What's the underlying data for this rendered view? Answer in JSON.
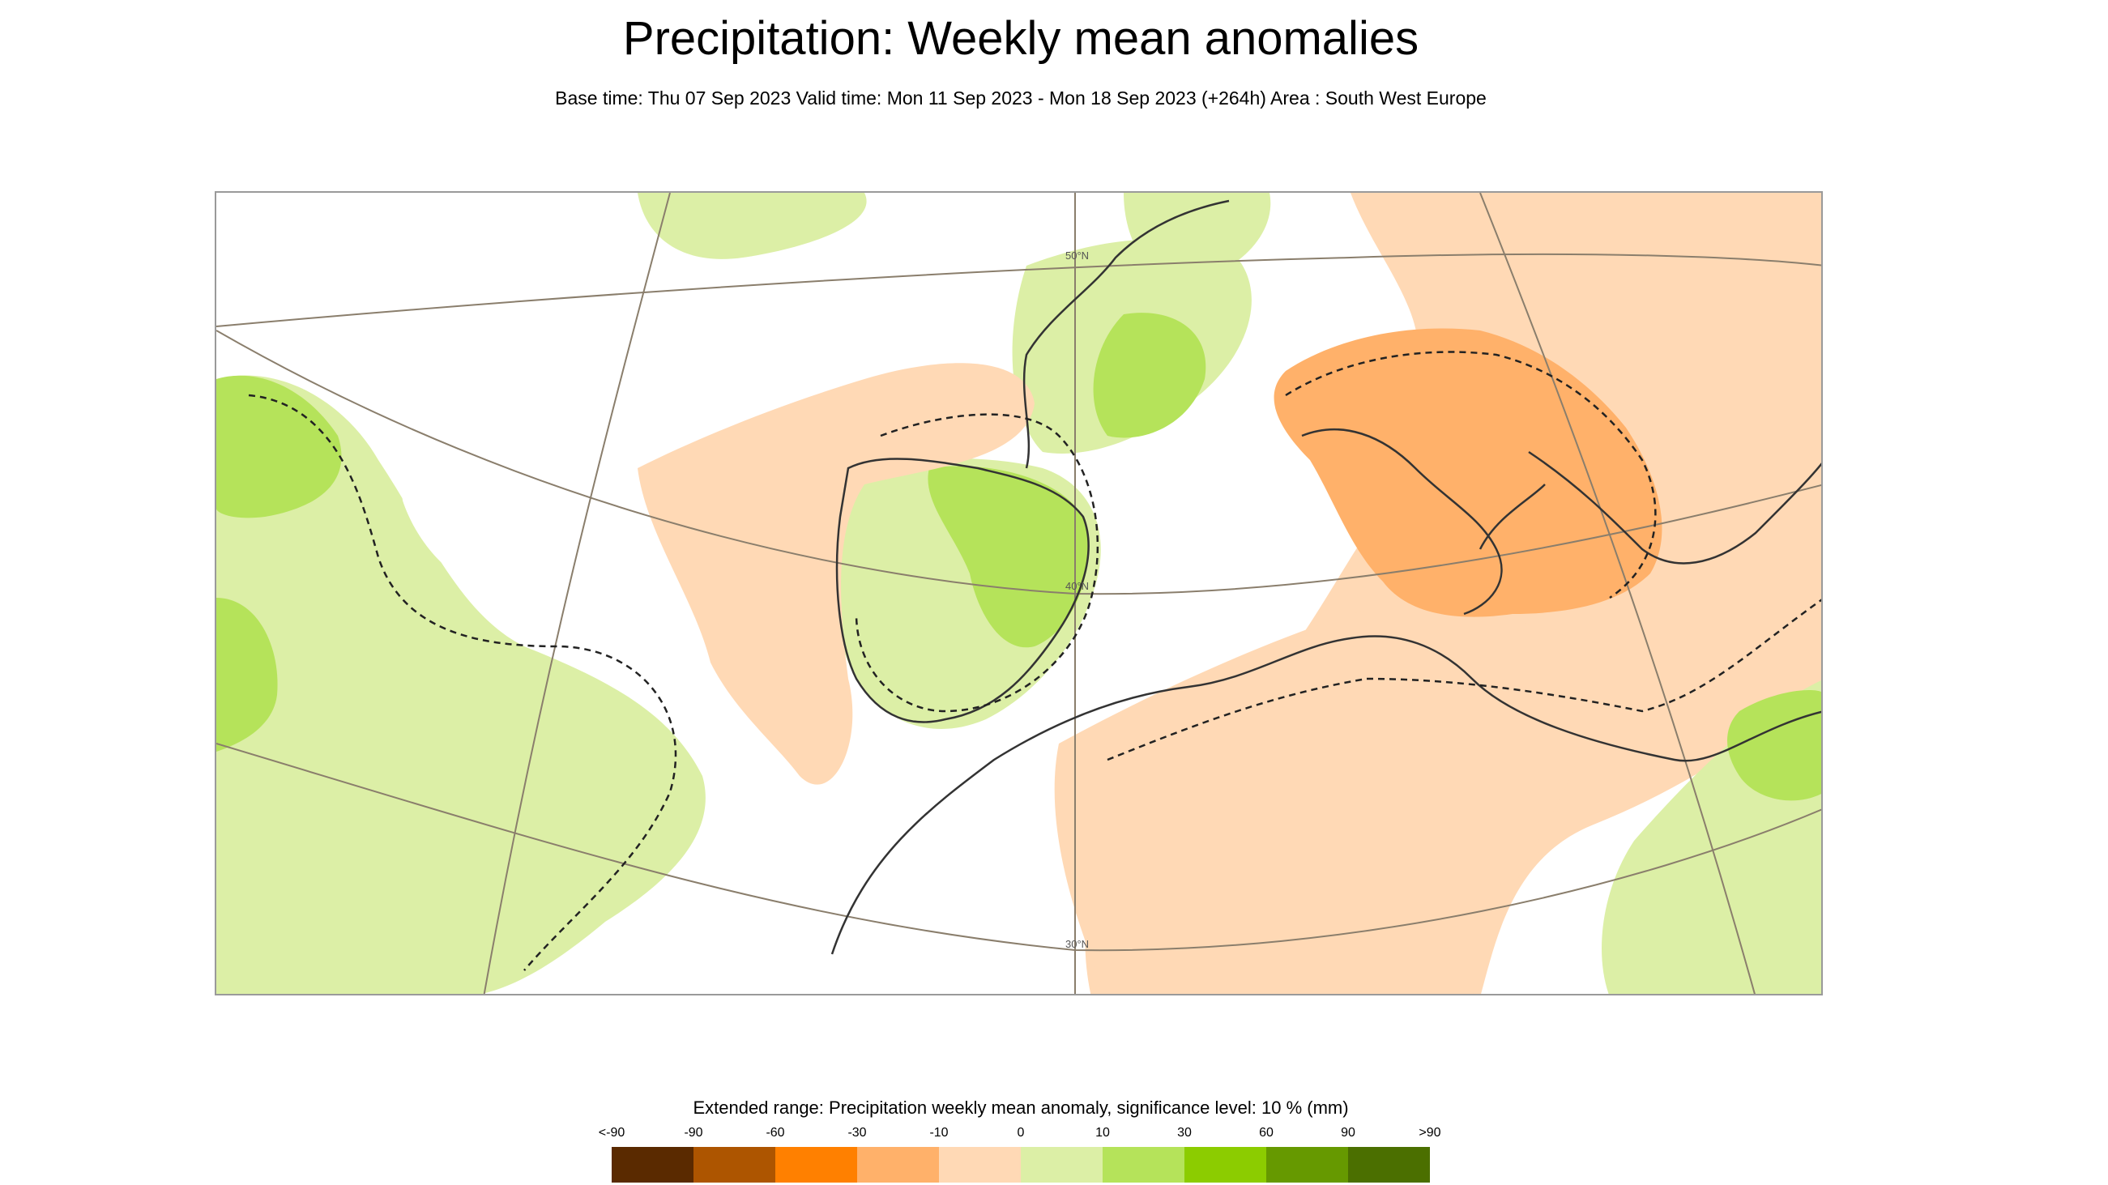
{
  "title": "Precipitation: Weekly mean anomalies",
  "subtitle": "Base time: Thu 07 Sep 2023 Valid time: Mon 11 Sep 2023 - Mon 18 Sep 2023 (+264h) Area : South West Europe",
  "map": {
    "region": "South West Europe",
    "latitude_labels": [
      "50°N",
      "40°N",
      "30°N"
    ],
    "icons": {
      "frame": "map-frame"
    }
  },
  "legend": {
    "title": "Extended range: Precipitation weekly mean anomaly, significance level: 10 % (mm)",
    "ticks": [
      "<-90",
      "-90",
      "-60",
      "-30",
      "-10",
      "0",
      "10",
      "30",
      "60",
      "90",
      ">90"
    ],
    "colors": [
      "#5a2a00",
      "#ad5500",
      "#ff8000",
      "#ffb16a",
      "#ffd9b5",
      "#dcefa6",
      "#b5e35a",
      "#8ccc00",
      "#669900",
      "#4b6f00"
    ]
  }
}
